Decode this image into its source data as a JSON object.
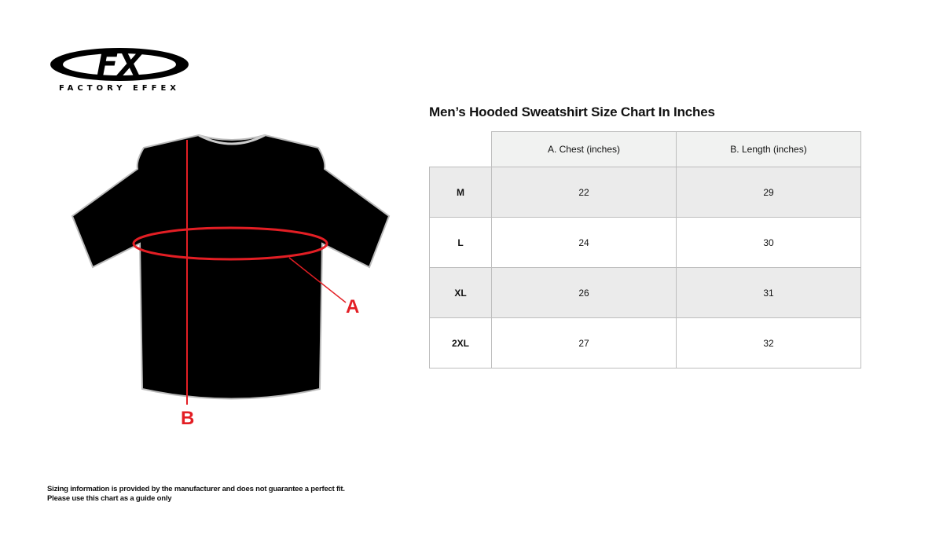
{
  "logo": {
    "mark": "FX",
    "brand": "FACTORY EFFEX"
  },
  "diagram": {
    "label_a": "A",
    "label_b": "B",
    "accent": "#e31e24"
  },
  "chart": {
    "title": "Men’s Hooded Sweatshirt Size Chart In Inches",
    "headers": [
      "",
      "A. Chest (inches)",
      "B. Length (inches)"
    ],
    "rows": [
      {
        "size": "M",
        "chest": "22",
        "length": "29"
      },
      {
        "size": "L",
        "chest": "24",
        "length": "30"
      },
      {
        "size": "XL",
        "chest": "26",
        "length": "31"
      },
      {
        "size": "2XL",
        "chest": "27",
        "length": "32"
      }
    ]
  },
  "note": {
    "line1": "Sizing information is provided by the manufacturer and does not guarantee a perfect fit.",
    "line2": "Please use this chart as a guide only"
  }
}
